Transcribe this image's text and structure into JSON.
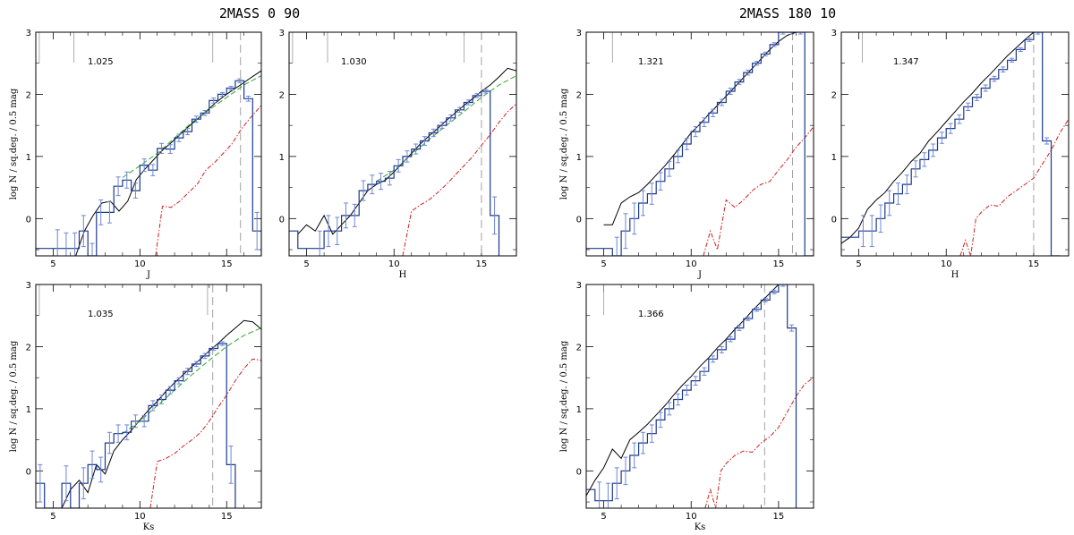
{
  "figure": {
    "group_titles": [
      "2MASS 0 90",
      "2MASS 180 10"
    ]
  },
  "colors": {
    "histogram": "#1b3a8c",
    "errorbar": "#6f86d6",
    "model_total": "#000000",
    "model_green": "#2fa82f",
    "model_red": "#d21e1e",
    "limit_line": "#999999",
    "marker": "#999999"
  },
  "chart_data": [
    {
      "type": "line",
      "group": "2MASS 0 90",
      "value_label": "1.025",
      "xlabel": "J",
      "ylabel": "log N / sq.deg. / 0.5 mag",
      "xlim": [
        4,
        17
      ],
      "ylim": [
        -0.6,
        3
      ],
      "xticks": [
        5,
        10,
        15
      ],
      "yticks": [
        0,
        1,
        2,
        3
      ],
      "limit_x": 15.8,
      "marker_x": [
        4.2,
        6.2,
        14.2
      ],
      "hist_x": [
        4,
        4.5,
        5,
        5.5,
        6,
        6.5,
        7,
        7.5,
        8,
        8.5,
        9,
        9.5,
        10,
        10.5,
        11,
        11.5,
        12,
        12.5,
        13,
        13.5,
        14,
        14.5,
        15,
        15.5,
        16,
        16.5
      ],
      "hist_y": [
        -0.48,
        -0.48,
        -0.48,
        -0.48,
        -0.48,
        -0.2,
        -0.6,
        0.1,
        0.1,
        0.52,
        0.62,
        0.45,
        0.86,
        0.78,
        1.13,
        1.12,
        1.3,
        1.4,
        1.6,
        1.7,
        1.9,
        2.0,
        2.1,
        2.22,
        1.93,
        -0.2
      ],
      "err": [
        0,
        0,
        0.3,
        0.25,
        0.25,
        0.25,
        0.2,
        0.2,
        0.17,
        0.15,
        0.13,
        0.12,
        0.1,
        0.09,
        0.08,
        0.07,
        0.06,
        0.05,
        0.05,
        0.04,
        0.04,
        0.03,
        0.03,
        0.03,
        0.04,
        0.3
      ],
      "series": [
        {
          "style": "total",
          "x": [
            6.3,
            6.8,
            7.3,
            7.8,
            8.3,
            8.8,
            9.3,
            9.8,
            10.3,
            10.8,
            11.3,
            11.8,
            12.3,
            12.8,
            13.3,
            13.8,
            14.3,
            14.8,
            15.3,
            15.8,
            16.3,
            17
          ],
          "y": [
            -0.6,
            -0.2,
            0.05,
            0.25,
            0.28,
            0.12,
            0.28,
            0.63,
            0.8,
            0.95,
            1.1,
            1.22,
            1.35,
            1.48,
            1.6,
            1.72,
            1.85,
            1.96,
            2.06,
            2.15,
            2.25,
            2.38
          ]
        },
        {
          "style": "green",
          "x": [
            9,
            10,
            11,
            12,
            13,
            14,
            15,
            16,
            17
          ],
          "y": [
            0.66,
            0.85,
            1.05,
            1.3,
            1.55,
            1.75,
            1.95,
            2.15,
            2.3
          ]
        },
        {
          "style": "red",
          "x": [
            10.9,
            11.3,
            11.8,
            12.3,
            12.8,
            13.3,
            13.8,
            14.3,
            14.8,
            15.3,
            15.8,
            16.3,
            17
          ],
          "y": [
            -0.6,
            0.2,
            0.18,
            0.28,
            0.42,
            0.55,
            0.78,
            0.9,
            1.05,
            1.2,
            1.42,
            1.6,
            1.82
          ]
        }
      ]
    },
    {
      "type": "line",
      "group": "2MASS 0 90",
      "value_label": "1.030",
      "xlabel": "H",
      "ylabel": "",
      "xlim": [
        4,
        17
      ],
      "ylim": [
        -0.6,
        3
      ],
      "xticks": [
        5,
        10,
        15
      ],
      "yticks": [
        0,
        1,
        2,
        3
      ],
      "limit_x": 15.0,
      "marker_x": [
        4.2,
        6.2,
        14.0
      ],
      "hist_x": [
        4,
        4.5,
        5,
        5.5,
        6,
        6.5,
        7,
        7.5,
        8,
        8.5,
        9,
        9.5,
        10,
        10.5,
        11,
        11.5,
        12,
        12.5,
        13,
        13.5,
        14,
        14.5,
        15,
        15.5
      ],
      "hist_y": [
        -0.2,
        -0.48,
        -0.48,
        -0.48,
        -0.2,
        -0.2,
        0.05,
        0.05,
        0.45,
        0.55,
        0.6,
        0.65,
        0.85,
        1.0,
        1.12,
        1.25,
        1.38,
        1.5,
        1.62,
        1.75,
        1.87,
        1.98,
        2.05,
        0.05
      ],
      "err": [
        0,
        0,
        0,
        0.28,
        0.25,
        0.22,
        0.2,
        0.18,
        0.16,
        0.15,
        0.13,
        0.11,
        0.1,
        0.09,
        0.08,
        0.07,
        0.06,
        0.05,
        0.05,
        0.04,
        0.04,
        0.03,
        0.03,
        0.3
      ],
      "series": [
        {
          "style": "total",
          "x": [
            4.5,
            5,
            5.5,
            6,
            6.5,
            7,
            7.5,
            8,
            8.5,
            9,
            9.5,
            10,
            10.5,
            11,
            11.5,
            12,
            12.5,
            13,
            13.5,
            14,
            14.5,
            15,
            15.5,
            16,
            16.5,
            17
          ],
          "y": [
            -0.25,
            -0.1,
            -0.2,
            0.05,
            -0.25,
            -0.1,
            0.05,
            0.25,
            0.45,
            0.55,
            0.62,
            0.75,
            0.9,
            1.05,
            1.2,
            1.33,
            1.45,
            1.58,
            1.7,
            1.82,
            1.93,
            2.05,
            2.15,
            2.28,
            2.42,
            2.38
          ]
        },
        {
          "style": "green",
          "x": [
            9,
            10,
            11,
            12,
            13,
            14,
            15,
            16,
            17
          ],
          "y": [
            0.6,
            0.78,
            1.03,
            1.27,
            1.5,
            1.72,
            1.95,
            2.15,
            2.3
          ]
        },
        {
          "style": "red",
          "x": [
            10.5,
            11,
            11.5,
            12,
            12.5,
            13,
            13.5,
            14,
            14.5,
            15,
            15.5,
            16,
            16.5,
            17
          ],
          "y": [
            -0.6,
            0.12,
            0.22,
            0.3,
            0.42,
            0.55,
            0.7,
            0.85,
            1.0,
            1.18,
            1.35,
            1.55,
            1.72,
            1.85
          ]
        }
      ]
    },
    {
      "type": "line",
      "group": "2MASS 180 10",
      "value_label": "1.321",
      "xlabel": "J",
      "ylabel": "log N / sq.deg. / 0.5 mag",
      "xlim": [
        4,
        17
      ],
      "ylim": [
        -0.6,
        3
      ],
      "xticks": [
        5,
        10,
        15
      ],
      "yticks": [
        0,
        1,
        2,
        3
      ],
      "limit_x": 15.8,
      "marker_x": [
        5.5
      ],
      "hist_x": [
        4,
        4.5,
        5,
        5.5,
        6,
        6.5,
        7,
        7.5,
        8,
        8.5,
        9,
        9.5,
        10,
        10.5,
        11,
        11.5,
        12,
        12.5,
        13,
        13.5,
        14,
        14.5,
        15,
        15.5,
        16,
        16.5
      ],
      "hist_y": [
        -0.48,
        -0.48,
        -0.48,
        -0.6,
        -0.2,
        0.0,
        0.25,
        0.4,
        0.6,
        0.8,
        1.0,
        1.2,
        1.4,
        1.55,
        1.7,
        1.87,
        2.05,
        2.2,
        2.35,
        2.5,
        2.65,
        2.8,
        3.0,
        3.0,
        3.0,
        -0.6
      ],
      "err": [
        0,
        0,
        0,
        0.3,
        0.28,
        0.25,
        0.2,
        0.17,
        0.14,
        0.12,
        0.1,
        0.09,
        0.08,
        0.07,
        0.06,
        0.05,
        0.05,
        0.04,
        0.04,
        0.03,
        0.03,
        0.03,
        0.03,
        0.03,
        0.03,
        0
      ],
      "series": [
        {
          "style": "total",
          "x": [
            5,
            5.5,
            6,
            6.5,
            7,
            7.5,
            8,
            8.5,
            9,
            9.5,
            10,
            10.5,
            11,
            11.5,
            12,
            12.5,
            13,
            13.5,
            14,
            14.5,
            15,
            15.5,
            16
          ],
          "y": [
            -0.1,
            -0.1,
            0.25,
            0.35,
            0.42,
            0.55,
            0.7,
            0.85,
            1.02,
            1.2,
            1.38,
            1.52,
            1.68,
            1.82,
            1.97,
            2.12,
            2.27,
            2.42,
            2.57,
            2.72,
            2.85,
            2.95,
            3.0
          ]
        },
        {
          "style": "red",
          "x": [
            10.7,
            11.1,
            11.5,
            12,
            12.5,
            13,
            13.5,
            14,
            14.5,
            15,
            15.5,
            16,
            16.5,
            17
          ],
          "y": [
            -0.6,
            -0.2,
            -0.5,
            0.3,
            0.18,
            0.3,
            0.45,
            0.55,
            0.6,
            0.78,
            0.95,
            1.15,
            1.3,
            1.48
          ]
        }
      ]
    },
    {
      "type": "line",
      "group": "2MASS 180 10",
      "value_label": "1.347",
      "xlabel": "H",
      "ylabel": "",
      "xlim": [
        4,
        17
      ],
      "ylim": [
        -0.6,
        3
      ],
      "xticks": [
        5,
        10,
        15
      ],
      "yticks": [
        0,
        1,
        2,
        3
      ],
      "limit_x": 15.0,
      "marker_x": [
        5.2
      ],
      "hist_x": [
        4,
        4.5,
        5,
        5.5,
        6,
        6.5,
        7,
        7.5,
        8,
        8.5,
        9,
        9.5,
        10,
        10.5,
        11,
        11.5,
        12,
        12.5,
        13,
        13.5,
        14,
        14.5,
        15,
        15.5,
        16
      ],
      "hist_y": [
        -0.3,
        -0.3,
        -0.2,
        -0.2,
        0.0,
        0.25,
        0.4,
        0.55,
        0.8,
        0.95,
        1.1,
        1.3,
        1.45,
        1.6,
        1.8,
        1.95,
        2.1,
        2.25,
        2.4,
        2.55,
        2.72,
        2.88,
        3.0,
        1.25,
        -0.6
      ],
      "err": [
        0,
        0,
        0.25,
        0.25,
        0.22,
        0.2,
        0.17,
        0.15,
        0.13,
        0.11,
        0.1,
        0.09,
        0.08,
        0.07,
        0.06,
        0.05,
        0.05,
        0.04,
        0.04,
        0.03,
        0.03,
        0.03,
        0.03,
        0.05,
        0
      ],
      "series": [
        {
          "style": "total",
          "x": [
            4,
            4.5,
            5,
            5.5,
            6,
            6.5,
            7,
            7.5,
            8,
            8.5,
            9,
            9.5,
            10,
            10.5,
            11,
            11.5,
            12,
            12.5,
            13,
            13.5,
            14,
            14.5,
            15
          ],
          "y": [
            -0.4,
            -0.3,
            -0.15,
            0.15,
            0.3,
            0.42,
            0.6,
            0.75,
            0.92,
            1.05,
            1.25,
            1.4,
            1.56,
            1.72,
            1.88,
            2.02,
            2.18,
            2.32,
            2.47,
            2.62,
            2.75,
            2.88,
            3.0
          ]
        },
        {
          "style": "red",
          "x": [
            10.8,
            11.1,
            11.4,
            11.7,
            12,
            12.5,
            13,
            13.5,
            14,
            14.5,
            15,
            15.5,
            16,
            16.5,
            17
          ],
          "y": [
            -0.6,
            -0.35,
            -0.6,
            0.0,
            0.1,
            0.22,
            0.2,
            0.35,
            0.45,
            0.55,
            0.65,
            0.88,
            1.1,
            1.38,
            1.6
          ]
        }
      ]
    },
    {
      "type": "line",
      "group": "2MASS 0 90",
      "value_label": "1.035",
      "xlabel": "Ks",
      "ylabel": "log N / sq.deg. / 0.5 mag",
      "xlim": [
        4,
        17
      ],
      "ylim": [
        -0.6,
        3
      ],
      "xticks": [
        5,
        10,
        15
      ],
      "yticks": [
        0,
        1,
        2,
        3
      ],
      "limit_x": 14.2,
      "marker_x": [
        4.2,
        13.9
      ],
      "hist_x": [
        4,
        4.5,
        5,
        5.5,
        6,
        6.5,
        7,
        7.5,
        8,
        8.5,
        9,
        9.5,
        10,
        10.5,
        11,
        11.5,
        12,
        12.5,
        13,
        13.5,
        14,
        14.5,
        15
      ],
      "hist_y": [
        -0.2,
        -0.6,
        -0.6,
        -0.2,
        -0.6,
        -0.2,
        0.1,
        0.02,
        0.45,
        0.6,
        0.62,
        0.8,
        0.8,
        1.05,
        1.15,
        1.3,
        1.45,
        1.6,
        1.72,
        1.85,
        1.97,
        2.05,
        0.1
      ],
      "err": [
        0.3,
        0,
        0,
        0.28,
        0,
        0.25,
        0.22,
        0.2,
        0.17,
        0.14,
        0.12,
        0.1,
        0.09,
        0.08,
        0.07,
        0.06,
        0.05,
        0.05,
        0.04,
        0.04,
        0.03,
        0.03,
        0.3
      ],
      "series": [
        {
          "style": "total",
          "x": [
            5.5,
            6,
            6.5,
            7,
            7.5,
            8,
            8.5,
            9,
            9.5,
            10,
            10.5,
            11,
            11.5,
            12,
            12.5,
            13,
            13.5,
            14,
            14.5,
            15,
            15.5,
            16,
            16.5,
            17
          ],
          "y": [
            -0.6,
            -0.3,
            -0.15,
            -0.35,
            0.1,
            -0.05,
            0.32,
            0.5,
            0.65,
            0.82,
            0.98,
            1.12,
            1.28,
            1.42,
            1.55,
            1.68,
            1.8,
            1.93,
            2.05,
            2.18,
            2.3,
            2.42,
            2.4,
            2.28
          ]
        },
        {
          "style": "green",
          "x": [
            9,
            10,
            11,
            12,
            13,
            14,
            15,
            16,
            17
          ],
          "y": [
            0.6,
            0.8,
            1.05,
            1.3,
            1.55,
            1.78,
            2.0,
            2.18,
            2.3
          ]
        },
        {
          "style": "red",
          "x": [
            10.6,
            11,
            11.5,
            12,
            12.5,
            13,
            13.5,
            14,
            14.5,
            15,
            15.5,
            16,
            16.5,
            17
          ],
          "y": [
            -0.6,
            0.15,
            0.2,
            0.28,
            0.4,
            0.5,
            0.62,
            0.8,
            1.02,
            1.22,
            1.45,
            1.65,
            1.8,
            1.78
          ]
        }
      ]
    },
    {
      "type": "line",
      "group": "2MASS 180 10",
      "value_label": "1.366",
      "xlabel": "Ks",
      "ylabel": "log N / sq.deg. / 0.5 mag",
      "xlim": [
        4,
        17
      ],
      "ylim": [
        -0.6,
        3
      ],
      "xticks": [
        5,
        10,
        15
      ],
      "yticks": [
        0,
        1,
        2,
        3
      ],
      "limit_x": 14.2,
      "marker_x": [
        5.0
      ],
      "hist_x": [
        4,
        4.5,
        5,
        5.5,
        6,
        6.5,
        7,
        7.5,
        8,
        8.5,
        9,
        9.5,
        10,
        10.5,
        11,
        11.5,
        12,
        12.5,
        13,
        13.5,
        14,
        14.5,
        15,
        15.5
      ],
      "hist_y": [
        -0.3,
        -0.48,
        -0.48,
        -0.2,
        0.0,
        0.25,
        0.45,
        0.6,
        0.82,
        1.0,
        1.15,
        1.3,
        1.45,
        1.6,
        1.8,
        1.95,
        2.12,
        2.3,
        2.45,
        2.6,
        2.75,
        2.88,
        3.0,
        2.3
      ],
      "err": [
        0,
        0.3,
        0.28,
        0.25,
        0.22,
        0.2,
        0.17,
        0.14,
        0.12,
        0.1,
        0.09,
        0.08,
        0.07,
        0.06,
        0.05,
        0.05,
        0.04,
        0.04,
        0.03,
        0.03,
        0.03,
        0.03,
        0.03,
        0.05
      ],
      "series": [
        {
          "style": "total",
          "x": [
            4,
            4.5,
            5,
            5.5,
            6,
            6.5,
            7,
            7.5,
            8,
            8.5,
            9,
            9.5,
            10,
            10.5,
            11,
            11.5,
            12,
            12.5,
            13,
            13.5,
            14,
            14.5,
            15
          ],
          "y": [
            -0.4,
            -0.15,
            0.05,
            0.35,
            0.2,
            0.5,
            0.62,
            0.75,
            0.9,
            1.05,
            1.22,
            1.38,
            1.52,
            1.68,
            1.82,
            1.98,
            2.12,
            2.28,
            2.42,
            2.58,
            2.72,
            2.86,
            3.0
          ]
        },
        {
          "style": "red",
          "x": [
            10.8,
            11.1,
            11.4,
            11.7,
            12,
            12.5,
            13,
            13.5,
            14,
            14.5,
            15,
            15.5,
            16,
            16.5,
            17
          ],
          "y": [
            -0.6,
            -0.3,
            -0.6,
            0.0,
            0.12,
            0.25,
            0.32,
            0.3,
            0.45,
            0.55,
            0.7,
            0.95,
            1.2,
            1.4,
            1.5
          ]
        }
      ]
    }
  ]
}
